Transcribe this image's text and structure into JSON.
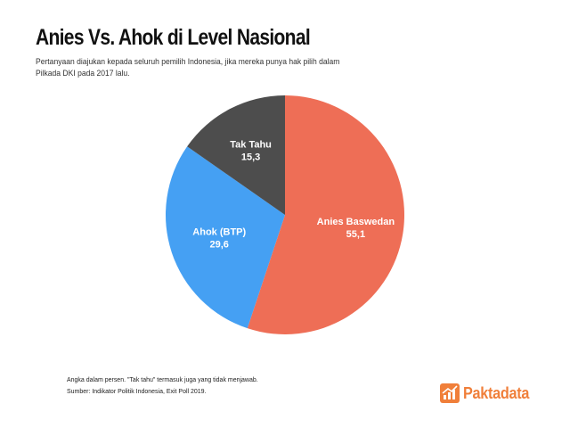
{
  "header": {
    "title": "Anies Vs. Ahok di Level Nasional",
    "subtitle": "Pertanyaan diajukan kepada seluruh pemilih Indonesia, jika mereka punya hak pilih dalam Pilkada DKI pada 2017 lalu."
  },
  "chart_data": {
    "type": "pie",
    "title": "Anies Vs. Ahok di Level Nasional",
    "unit": "persen",
    "slices": [
      {
        "name": "Anies Baswedan",
        "value_label": "55,1",
        "value": 55.1,
        "color": "#ee6e56"
      },
      {
        "name": "Ahok (BTP)",
        "value_label": "29,6",
        "value": 29.6,
        "color": "#45a0f3"
      },
      {
        "name": "Tak Tahu",
        "value_label": "15,3",
        "value": 15.3,
        "color": "#4d4d4d"
      }
    ],
    "legend": "none"
  },
  "footer": {
    "note": "Angka dalam persen. \"Tak tahu\" termasuk juga yang tidak menjawab.",
    "source": "Sumber: Indikator Politik Indonesia, Exit Poll 2019."
  },
  "brand": {
    "name": "Paktadata",
    "color": "#f07f3a",
    "icon": "trend-chart-icon"
  }
}
